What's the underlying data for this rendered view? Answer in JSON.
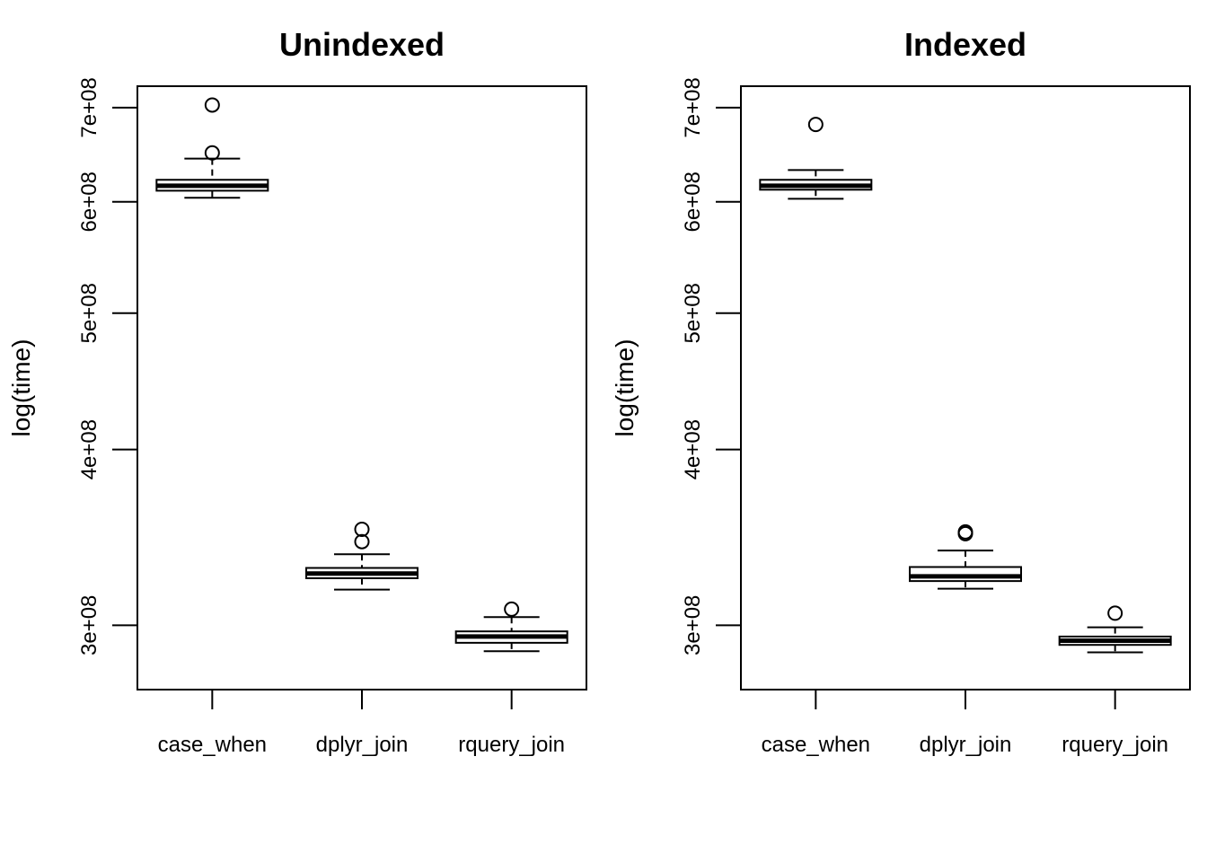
{
  "chart_data": [
    {
      "type": "box",
      "title": "Unindexed",
      "xlabel": "",
      "ylabel": "log(time)",
      "scale": "log",
      "ylim": [
        270000000,
        725000000
      ],
      "yticks": [
        300000000,
        400000000,
        500000000,
        600000000,
        700000000
      ],
      "ytick_labels": [
        "3e+08",
        "4e+08",
        "5e+08",
        "6e+08",
        "7e+08"
      ],
      "categories": [
        "case_when",
        "dplyr_join",
        "rquery_join"
      ],
      "boxes": [
        {
          "min": 604000000,
          "q1": 611000000,
          "median": 616000000,
          "q3": 622000000,
          "max": 644000000,
          "outliers": [
            650000000,
            703000000
          ]
        },
        {
          "min": 318000000,
          "q1": 324000000,
          "median": 326500000,
          "q3": 329500000,
          "max": 337000000,
          "outliers": [
            344000000,
            351000000
          ]
        },
        {
          "min": 287500000,
          "q1": 291500000,
          "median": 294500000,
          "q3": 297000000,
          "max": 304000000,
          "outliers": [
            308000000
          ]
        }
      ]
    },
    {
      "type": "box",
      "title": "Indexed",
      "xlabel": "",
      "ylabel": "log(time)",
      "scale": "log",
      "ylim": [
        270000000,
        725000000
      ],
      "yticks": [
        300000000,
        400000000,
        500000000,
        600000000,
        700000000
      ],
      "ytick_labels": [
        "3e+08",
        "4e+08",
        "5e+08",
        "6e+08",
        "7e+08"
      ],
      "categories": [
        "case_when",
        "dplyr_join",
        "rquery_join"
      ],
      "boxes": [
        {
          "min": 603000000,
          "q1": 612000000,
          "median": 616000000,
          "q3": 622000000,
          "max": 632000000,
          "outliers": [
            681000000
          ]
        },
        {
          "min": 318500000,
          "q1": 322500000,
          "median": 325000000,
          "q3": 330000000,
          "max": 339000000,
          "outliers": [
            348500000,
            349500000
          ]
        },
        {
          "min": 287000000,
          "q1": 290500000,
          "median": 292500000,
          "q3": 294500000,
          "max": 299000000,
          "outliers": [
            306000000
          ]
        }
      ]
    }
  ]
}
